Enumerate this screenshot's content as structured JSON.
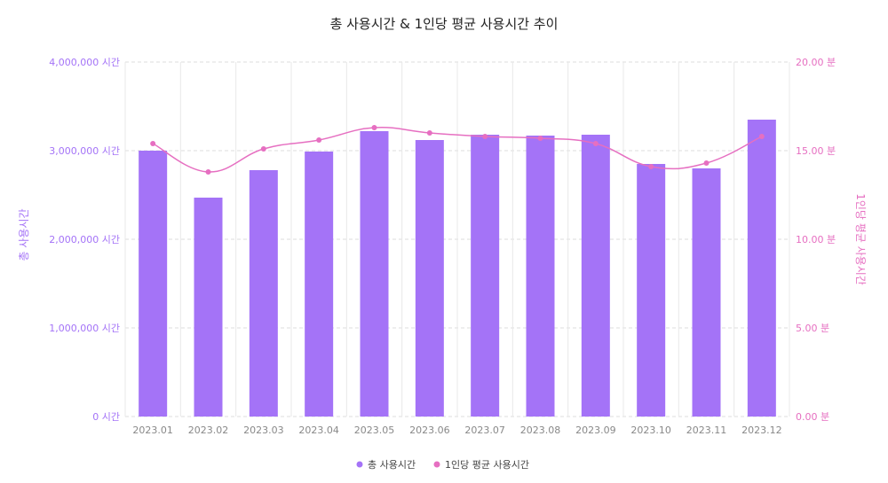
{
  "chart_data": {
    "type": "bar",
    "title": "총 사용시간 & 1인당 평균 사용시간 추이",
    "categories": [
      "2023.01",
      "2023.02",
      "2023.03",
      "2023.04",
      "2023.05",
      "2023.06",
      "2023.07",
      "2023.08",
      "2023.09",
      "2023.10",
      "2023.11",
      "2023.12"
    ],
    "y_left": {
      "label": "총 사용시간",
      "min": 0,
      "max": 4000000,
      "ticks": [
        {
          "value": 0,
          "label": "0 시간"
        },
        {
          "value": 1000000,
          "label": "1,000,000 시간"
        },
        {
          "value": 2000000,
          "label": "2,000,000 시간"
        },
        {
          "value": 3000000,
          "label": "3,000,000 시간"
        },
        {
          "value": 4000000,
          "label": "4,000,000 시간"
        }
      ]
    },
    "y_right": {
      "label": "1인당 평균 사용시간",
      "min": 0,
      "max": 20,
      "ticks": [
        {
          "value": 0,
          "label": "0.00 분"
        },
        {
          "value": 5,
          "label": "5.00 분"
        },
        {
          "value": 10,
          "label": "10.00 분"
        },
        {
          "value": 15,
          "label": "15.00 분"
        },
        {
          "value": 20,
          "label": "20.00 분"
        }
      ]
    },
    "series": [
      {
        "name": "총 사용시간",
        "type": "bar",
        "axis": "left",
        "color": "#a473f7",
        "values": [
          3000000,
          2470000,
          2780000,
          2990000,
          3220000,
          3120000,
          3180000,
          3170000,
          3180000,
          2850000,
          2800000,
          3350000
        ]
      },
      {
        "name": "1인당 평균 사용시간",
        "type": "line",
        "axis": "right",
        "color": "#e66fc1",
        "values": [
          15.4,
          13.8,
          15.1,
          15.6,
          16.3,
          16.0,
          15.8,
          15.7,
          15.4,
          14.1,
          14.3,
          15.8
        ]
      }
    ],
    "grid": true,
    "legend": "bottom-center"
  }
}
